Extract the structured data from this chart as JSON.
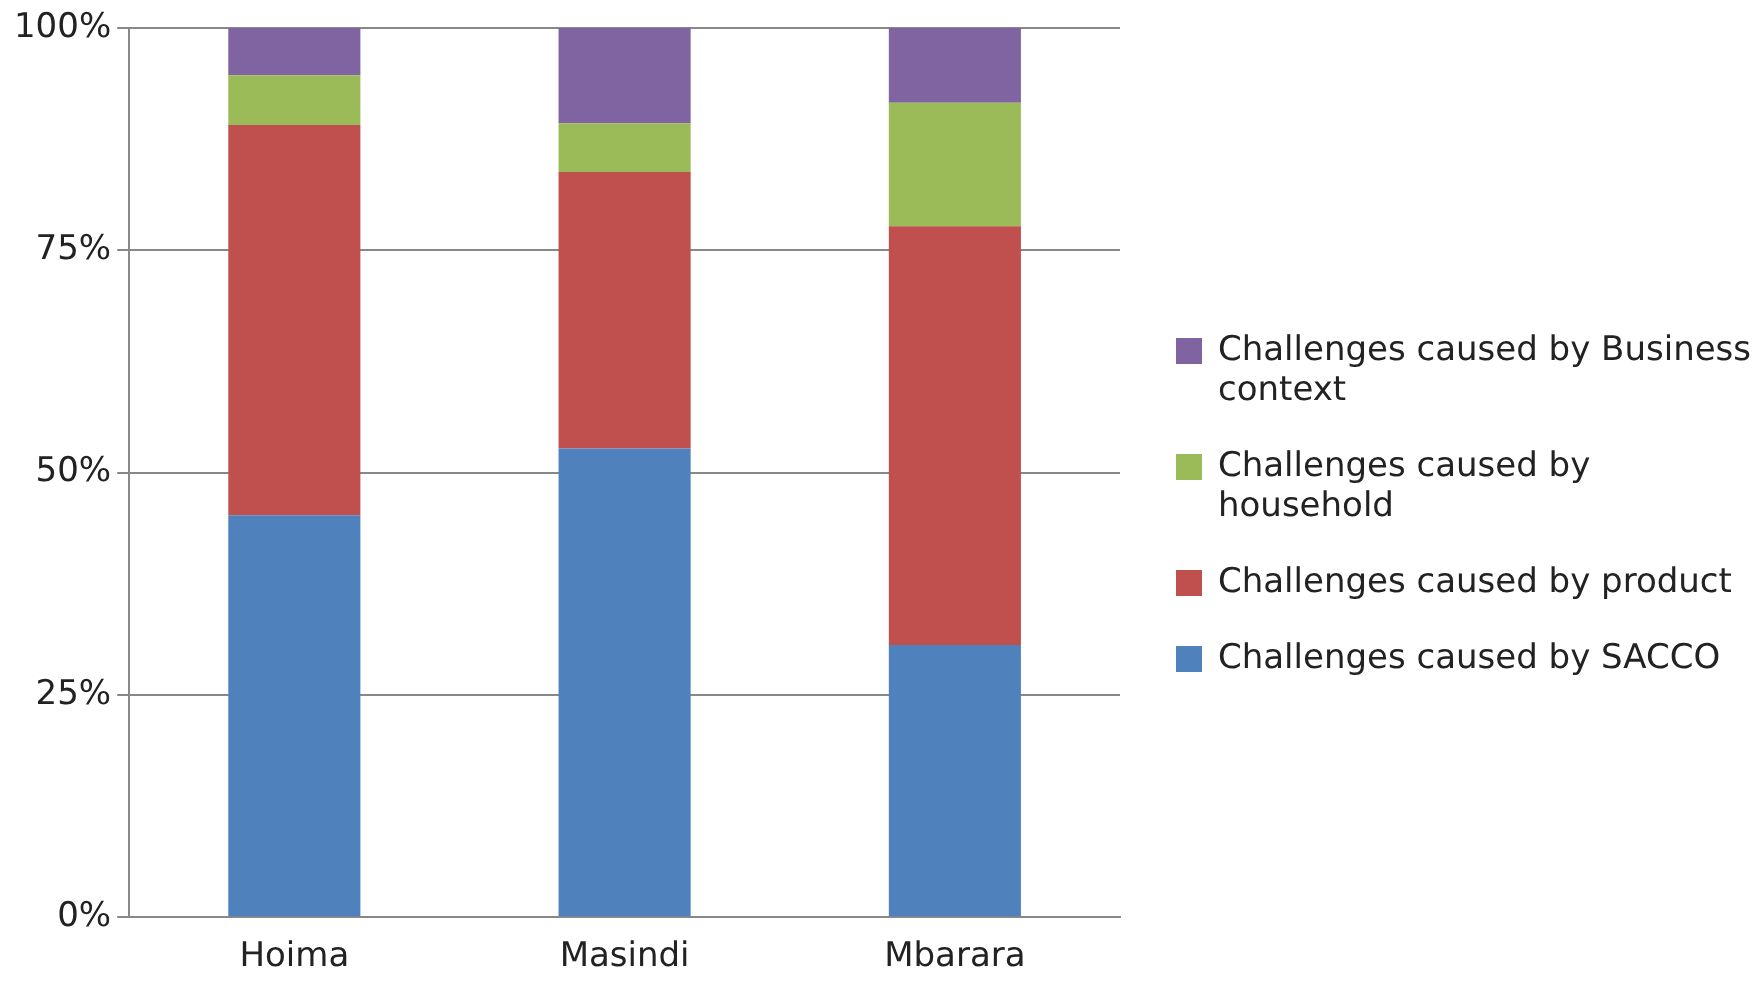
{
  "chart_data": {
    "type": "bar",
    "stacked": true,
    "categories": [
      "Hoima",
      "Masindi",
      "Mbarara"
    ],
    "series": [
      {
        "name": "Challenges caused by SACCO",
        "color": "#4f81bd",
        "values": [
          45.2,
          52.7,
          30.6
        ]
      },
      {
        "name": "Challenges caused by product",
        "color": "#c0504d",
        "values": [
          43.9,
          31.1,
          47.1
        ]
      },
      {
        "name": "Challenges caused by household",
        "color": "#9bbb59",
        "values": [
          5.6,
          5.5,
          13.9
        ]
      },
      {
        "name": "Challenges caused by Business context",
        "color": "#8064a2",
        "values": [
          5.3,
          10.7,
          8.4
        ]
      }
    ],
    "ylim": [
      0,
      100
    ],
    "yticks": [
      {
        "value": 0,
        "label": "0%"
      },
      {
        "value": 25,
        "label": "25%"
      },
      {
        "value": 50,
        "label": "50%"
      },
      {
        "value": 75,
        "label": "75%"
      },
      {
        "value": 100,
        "label": "100%"
      }
    ],
    "grid": "y",
    "legend": "right"
  }
}
